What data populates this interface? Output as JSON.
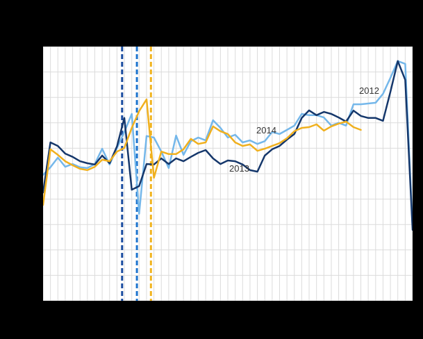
{
  "page": {
    "background": "#000000",
    "plot_background": "#FFFFFF"
  },
  "chart_data": {
    "type": "line",
    "x_unit": "week",
    "x_range": [
      1,
      51
    ],
    "ylim": [
      0,
      100
    ],
    "grid": {
      "visible": true,
      "color": "#DBDBDB",
      "x_divisions": 50,
      "y_divisions": 10
    },
    "legend_position": "inline-labels",
    "series": [
      {
        "name": "2012",
        "color": "#74B7EA",
        "start_week": 1,
        "values": [
          49.5,
          52.5,
          56.3,
          52.7,
          53.8,
          52.5,
          52.2,
          53.8,
          59.8,
          53.6,
          60.1,
          66.4,
          73.5,
          34.2,
          64.8,
          64.2,
          58.7,
          52.2,
          65.0,
          57.4,
          62.8,
          64.2,
          63.1,
          71.0,
          68.0,
          64.2,
          65.3,
          62.3,
          63.1,
          61.7,
          62.8,
          66.4,
          65.6,
          67.2,
          68.9,
          73.5,
          73.0,
          73.0,
          72.1,
          68.9,
          70.0,
          68.9,
          77.3,
          77.3,
          77.6,
          77.9,
          81.4,
          87.7,
          94.3,
          93.2,
          28.7
        ]
      },
      {
        "name": "2013",
        "color": "#15376B",
        "start_week": 1,
        "values": [
          42.6,
          62.3,
          60.9,
          57.9,
          56.6,
          54.9,
          54.1,
          53.6,
          57.1,
          54.1,
          60.7,
          71.9,
          43.7,
          45.1,
          53.8,
          53.6,
          56.0,
          53.8,
          56.0,
          54.9,
          56.6,
          58.2,
          59.3,
          56.0,
          53.8,
          55.2,
          54.9,
          53.6,
          51.4,
          50.8,
          57.1,
          59.6,
          60.9,
          63.4,
          65.6,
          71.9,
          74.9,
          73.0,
          74.3,
          73.5,
          72.1,
          70.5,
          74.8,
          72.7,
          71.9,
          71.9,
          70.8,
          82.2,
          94.3,
          86.9,
          27.9
        ]
      },
      {
        "name": "2014",
        "color": "#F0B01E",
        "start_week": 1,
        "values": [
          37.7,
          59.6,
          57.4,
          54.9,
          53.3,
          51.9,
          51.4,
          52.7,
          55.5,
          54.9,
          58.7,
          60.1,
          68.0,
          74.6,
          79.2,
          48.4,
          58.7,
          57.7,
          57.7,
          59.6,
          63.7,
          61.7,
          62.3,
          68.6,
          66.7,
          65.6,
          62.3,
          60.9,
          61.5,
          59.0,
          59.8,
          60.9,
          62.0,
          63.9,
          66.7,
          68.0,
          68.3,
          69.4,
          66.9,
          68.6,
          69.7,
          70.5,
          68.3,
          67.2
        ]
      }
    ],
    "vlines": [
      {
        "week": 11.7,
        "color": "#1A4CA0",
        "style": "dashed",
        "series": "2013"
      },
      {
        "week": 13.7,
        "color": "#1D74CE",
        "style": "dashed",
        "series": "2012"
      },
      {
        "week": 15.6,
        "color": "#F1B41F",
        "style": "dashed",
        "series": "2014"
      }
    ],
    "annotations": [
      {
        "text": "2012",
        "week": 43.8,
        "value": 84.4
      },
      {
        "text": "2013",
        "week": 26.2,
        "value": 53.8
      },
      {
        "text": "2014",
        "week": 29.9,
        "value": 68.9
      }
    ]
  }
}
